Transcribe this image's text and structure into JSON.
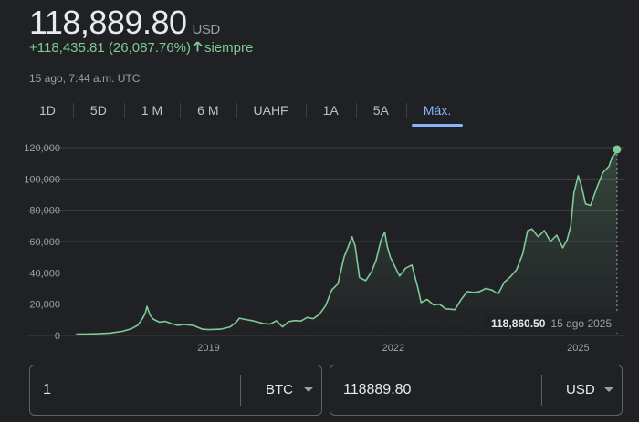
{
  "quote": {
    "price": "118,889.80",
    "currency": "USD",
    "change": "+118,435.81 (26,087.76%)",
    "change_period": "siempre",
    "timestamp": "15 ago, 7:44 a.m. UTC"
  },
  "ranges": [
    "1D",
    "5D",
    "1 M",
    "6 M",
    "UAHF",
    "1A",
    "5A",
    "Máx."
  ],
  "active_range": "Máx.",
  "tooltip": {
    "value": "118,860.50",
    "date": "15 ago 2025"
  },
  "converter": {
    "from_amount": "1",
    "from_unit": "BTC",
    "to_amount": "118889.80",
    "to_unit": "USD"
  },
  "colors": {
    "line": "#81c995",
    "accent": "#8ab4f8",
    "background": "#202124"
  },
  "chart_data": {
    "type": "area",
    "x_tick_labels": [
      "2019",
      "2022",
      "2025"
    ],
    "y_tick_labels": [
      "0",
      "20,000",
      "40,000",
      "60,000",
      "80,000",
      "100,000",
      "120,000"
    ],
    "ylim": [
      0,
      120000
    ],
    "xlim": [
      2016.8,
      2025.75
    ],
    "grid": true,
    "series": [
      {
        "x": [
          2016.85,
          2017.0,
          2017.2,
          2017.4,
          2017.6,
          2017.75,
          2017.85,
          2017.93,
          2017.97,
          2018.0,
          2018.05,
          2018.1,
          2018.2,
          2018.3,
          2018.4,
          2018.5,
          2018.6,
          2018.75,
          2018.9,
          2019.0,
          2019.2,
          2019.35,
          2019.45,
          2019.5,
          2019.6,
          2019.7,
          2019.8,
          2019.9,
          2020.0,
          2020.1,
          2020.2,
          2020.3,
          2020.4,
          2020.5,
          2020.6,
          2020.7,
          2020.8,
          2020.9,
          2021.0,
          2021.1,
          2021.2,
          2021.28,
          2021.33,
          2021.38,
          2021.45,
          2021.55,
          2021.65,
          2021.72,
          2021.8,
          2021.86,
          2021.9,
          2021.95,
          2022.0,
          2022.1,
          2022.2,
          2022.3,
          2022.4,
          2022.45,
          2022.55,
          2022.65,
          2022.75,
          2022.85,
          2022.92,
          2023.0,
          2023.1,
          2023.2,
          2023.3,
          2023.4,
          2023.5,
          2023.6,
          2023.7,
          2023.8,
          2023.9,
          2024.0,
          2024.1,
          2024.18,
          2024.25,
          2024.35,
          2024.45,
          2024.55,
          2024.65,
          2024.75,
          2024.82,
          2024.88,
          2024.93,
          2025.0,
          2025.05,
          2025.12,
          2025.2,
          2025.3,
          2025.4,
          2025.5,
          2025.55,
          2025.6,
          2025.63
        ],
        "y": [
          800,
          950,
          1100,
          1500,
          2600,
          4300,
          6500,
          11000,
          14000,
          18500,
          13000,
          10500,
          8500,
          9000,
          7500,
          6500,
          7000,
          6400,
          4000,
          3700,
          4000,
          5500,
          8500,
          11000,
          10200,
          9500,
          8500,
          7500,
          7200,
          9300,
          5500,
          8800,
          9500,
          9200,
          11500,
          10700,
          13500,
          19000,
          29000,
          33000,
          50000,
          58000,
          63000,
          57000,
          37000,
          35000,
          41000,
          48000,
          61000,
          66000,
          57000,
          50000,
          46000,
          38000,
          43000,
          45000,
          30000,
          21000,
          23000,
          19500,
          20000,
          17000,
          16800,
          16500,
          23000,
          28000,
          27500,
          28000,
          30000,
          29000,
          26500,
          34000,
          37500,
          42000,
          52000,
          67000,
          68000,
          63000,
          67000,
          60000,
          64000,
          56000,
          61000,
          70000,
          91000,
          102000,
          96000,
          84000,
          83000,
          94000,
          104000,
          108000,
          114000,
          116000,
          118860
        ]
      }
    ]
  }
}
